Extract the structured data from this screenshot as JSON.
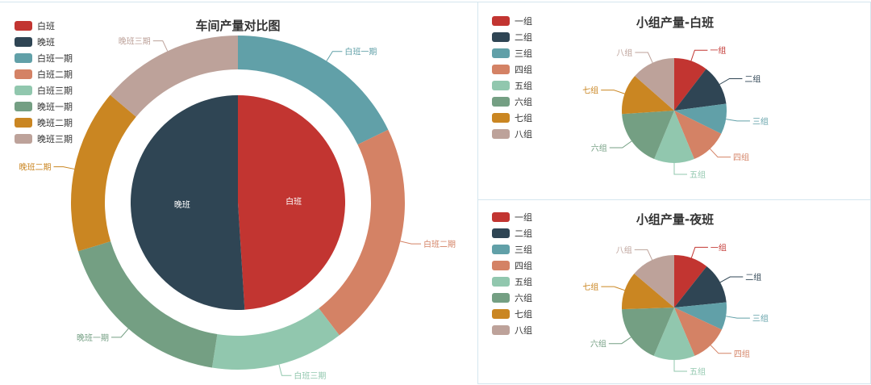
{
  "colors": [
    "#c23531",
    "#2f4554",
    "#61a0a8",
    "#d48265",
    "#91c7ae",
    "#749f83",
    "#ca8622",
    "#bda29a"
  ],
  "chart_data": [
    {
      "type": "pie",
      "title": "车间产量对比图",
      "legend": [
        "白班",
        "晚班",
        "白班一期",
        "白班二期",
        "白班三期",
        "晚班一期",
        "晚班二期",
        "晚班三期"
      ],
      "legend_position": "top-left",
      "inner": [
        {
          "name": "白班",
          "value": 49
        },
        {
          "name": "晚班",
          "value": 51
        }
      ],
      "outer": [
        {
          "name": "白班一期",
          "value": 18
        },
        {
          "name": "白班二期",
          "value": 22
        },
        {
          "name": "白班三期",
          "value": 13
        },
        {
          "name": "晚班一期",
          "value": 18
        },
        {
          "name": "晚班二期",
          "value": 16
        },
        {
          "name": "晚班三期",
          "value": 14
        }
      ]
    },
    {
      "type": "pie",
      "title": "小组产量-白班",
      "legend": [
        "一组",
        "二组",
        "三组",
        "四组",
        "五组",
        "六组",
        "七组",
        "八组"
      ],
      "legend_position": "top-left",
      "values": [
        {
          "name": "一组",
          "value": 10
        },
        {
          "name": "二组",
          "value": 12
        },
        {
          "name": "三组",
          "value": 9
        },
        {
          "name": "四组",
          "value": 11
        },
        {
          "name": "五组",
          "value": 12
        },
        {
          "name": "六组",
          "value": 17
        },
        {
          "name": "七组",
          "value": 12
        },
        {
          "name": "八组",
          "value": 13
        }
      ]
    },
    {
      "type": "pie",
      "title": "小组产量-夜班",
      "legend": [
        "一组",
        "二组",
        "三组",
        "四组",
        "五组",
        "六组",
        "七组",
        "八组"
      ],
      "legend_position": "top-left",
      "values": [
        {
          "name": "一组",
          "value": 10
        },
        {
          "name": "二组",
          "value": 12
        },
        {
          "name": "三组",
          "value": 8
        },
        {
          "name": "四组",
          "value": 11
        },
        {
          "name": "五组",
          "value": 12
        },
        {
          "name": "六组",
          "value": 17
        },
        {
          "name": "七组",
          "value": 11
        },
        {
          "name": "八组",
          "value": 13
        }
      ]
    }
  ]
}
